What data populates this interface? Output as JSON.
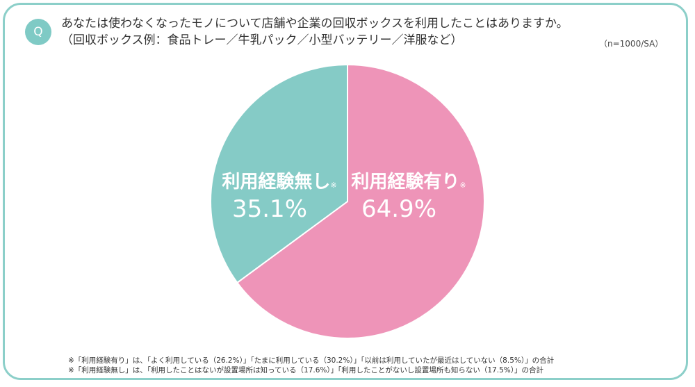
{
  "question": {
    "badge": "Q",
    "line1": "あなたは使わなくなったモノについて店舗や企業の回収ボックスを利用したことはありますか。",
    "line2": "（回収ボックス例：食品トレー／牛乳パック／小型バッテリー／洋服など）",
    "sample": "（n=1000/SA）"
  },
  "chart_data": {
    "type": "pie",
    "start_angle_deg": 0,
    "direction": "clockwise",
    "slices": [
      {
        "label": "利用経験有り",
        "mark": "※",
        "value": 64.9,
        "display": "64.9%",
        "color": "#ee94b8"
      },
      {
        "label": "利用経験無し",
        "mark": "※",
        "value": 35.1,
        "display": "35.1%",
        "color": "#85cbc6"
      }
    ]
  },
  "notes": [
    "※「利用経験有り」は、「よく利用している（26.2%）」「たまに利用している（30.2%）」「以前は利用していたが最近はしていない（8.5%）」の合計",
    "※「利用経験無し」は、「利用したことはないが設置場所は知っている（17.6%）」「利用したことがないし設置場所も知らない（17.5%）」の合計"
  ]
}
